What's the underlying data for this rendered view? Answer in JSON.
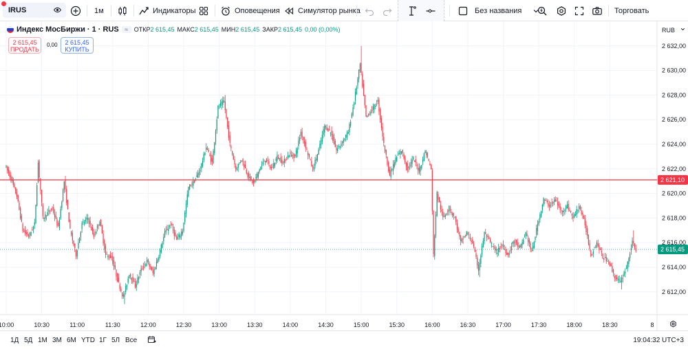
{
  "toolbar": {
    "symbol": "IRUS",
    "interval": "1м",
    "indicators_label": "Индикаторы",
    "alerts_label": "Оповещения",
    "replay_label": "Симулятор рынка",
    "layout_name": "Без названия",
    "trade_label": "Торговать"
  },
  "legend": {
    "title": "Индекс МосБиржи · 1 · RUS",
    "open_key": "ОТКР",
    "open_val": "2 615,45",
    "high_key": "МАКС",
    "high_val": "2 615,45",
    "low_key": "МИН",
    "low_val": "2 615,45",
    "close_key": "ЗАКР",
    "close_val": "2 615,45",
    "change": "0,00 (0,00%)"
  },
  "trade": {
    "sell_price": "2 615,45",
    "sell_label": "ПРОДАТЬ",
    "spread": "0,00",
    "buy_price": "2 615,45",
    "buy_label": "КУПИТЬ"
  },
  "scale_unit": "RUB",
  "bottom": {
    "timeframes": [
      "1Д",
      "5Д",
      "1М",
      "3М",
      "6М",
      "YTD",
      "1Г",
      "5Л",
      "Все"
    ],
    "clock": "19:04:32 UTC+3"
  },
  "colors": {
    "up": "#089981",
    "down": "#f23645",
    "grid": "#f0f3fa",
    "ref_line": "#f23645",
    "last_line": "#089981"
  },
  "chart_data": {
    "type": "candlestick",
    "y_ticks": [
      "2 632,00",
      "2 630,00",
      "2 628,00",
      "2 626,00",
      "2 624,00",
      "2 622,00",
      "2 620,00",
      "2 618,00",
      "2 616,00",
      "2 614,00",
      "2 612,00"
    ],
    "y_tick_values": [
      2632,
      2630,
      2628,
      2626,
      2624,
      2622,
      2620,
      2618,
      2616,
      2614,
      2612
    ],
    "x_ticks": [
      "10:00",
      "10:30",
      "11:00",
      "11:30",
      "12:00",
      "12:30",
      "13:00",
      "13:30",
      "14:00",
      "14:30",
      "15:00",
      "15:30",
      "16:00",
      "16:30",
      "17:00",
      "17:30",
      "18:00",
      "18:30",
      "8"
    ],
    "ylim": [
      2610.2,
      2634.0
    ],
    "horizontal_line": {
      "value": 2621.1,
      "label": "2 621,10"
    },
    "last_price": {
      "value": 2615.45,
      "label": "2 615,45"
    },
    "price_path": [
      [
        "10:00",
        2622.3
      ],
      [
        "10:05",
        2621.2
      ],
      [
        "10:10",
        2619.8
      ],
      [
        "10:15",
        2617.0
      ],
      [
        "10:20",
        2616.5
      ],
      [
        "10:25",
        2617.5
      ],
      [
        "10:28",
        2622.5
      ],
      [
        "10:32",
        2618.0
      ],
      [
        "10:40",
        2618.8
      ],
      [
        "10:45",
        2617.2
      ],
      [
        "10:50",
        2621.0
      ],
      [
        "10:55",
        2617.0
      ],
      [
        "11:00",
        2615.0
      ],
      [
        "11:05",
        2617.5
      ],
      [
        "11:10",
        2618.0
      ],
      [
        "11:15",
        2616.5
      ],
      [
        "11:20",
        2617.8
      ],
      [
        "11:25",
        2615.0
      ],
      [
        "11:30",
        2614.8
      ],
      [
        "11:35",
        2613.0
      ],
      [
        "11:40",
        2611.5
      ],
      [
        "11:45",
        2613.5
      ],
      [
        "11:50",
        2612.5
      ],
      [
        "11:55",
        2613.8
      ],
      [
        "12:00",
        2614.5
      ],
      [
        "12:05",
        2613.5
      ],
      [
        "12:10",
        2615.0
      ],
      [
        "12:15",
        2616.8
      ],
      [
        "12:20",
        2617.5
      ],
      [
        "12:25",
        2616.2
      ],
      [
        "12:30",
        2617.0
      ],
      [
        "12:35",
        2620.5
      ],
      [
        "12:40",
        2621.0
      ],
      [
        "12:45",
        2622.0
      ],
      [
        "12:50",
        2623.8
      ],
      [
        "12:55",
        2622.5
      ],
      [
        "13:00",
        2627.0
      ],
      [
        "13:05",
        2627.5
      ],
      [
        "13:10",
        2624.0
      ],
      [
        "13:15",
        2622.0
      ],
      [
        "13:20",
        2622.8
      ],
      [
        "13:25",
        2621.5
      ],
      [
        "13:30",
        2620.8
      ],
      [
        "13:35",
        2622.0
      ],
      [
        "13:40",
        2622.8
      ],
      [
        "13:45",
        2622.0
      ],
      [
        "13:50",
        2623.0
      ],
      [
        "13:55",
        2622.5
      ],
      [
        "14:00",
        2623.2
      ],
      [
        "14:05",
        2623.0
      ],
      [
        "14:10",
        2625.0
      ],
      [
        "14:15",
        2623.5
      ],
      [
        "14:20",
        2622.0
      ],
      [
        "14:25",
        2623.5
      ],
      [
        "14:30",
        2625.5
      ],
      [
        "14:35",
        2625.0
      ],
      [
        "14:40",
        2623.5
      ],
      [
        "14:45",
        2624.2
      ],
      [
        "14:50",
        2625.0
      ],
      [
        "14:55",
        2627.5
      ],
      [
        "15:00",
        2630.5
      ],
      [
        "15:05",
        2626.2
      ],
      [
        "15:10",
        2626.8
      ],
      [
        "15:15",
        2627.5
      ],
      [
        "15:20",
        2624.0
      ],
      [
        "15:25",
        2621.5
      ],
      [
        "15:30",
        2622.8
      ],
      [
        "15:35",
        2623.5
      ],
      [
        "15:40",
        2622.0
      ],
      [
        "15:45",
        2622.8
      ],
      [
        "15:50",
        2621.8
      ],
      [
        "15:55",
        2623.5
      ],
      [
        "16:00",
        2622.0
      ],
      [
        "16:02",
        2615.0
      ],
      [
        "16:05",
        2620.0
      ],
      [
        "16:10",
        2618.0
      ],
      [
        "16:15",
        2618.8
      ],
      [
        "16:20",
        2618.0
      ],
      [
        "16:25",
        2616.0
      ],
      [
        "16:30",
        2616.8
      ],
      [
        "16:35",
        2616.0
      ],
      [
        "16:40",
        2613.8
      ],
      [
        "16:45",
        2616.8
      ],
      [
        "16:50",
        2616.0
      ],
      [
        "16:55",
        2615.2
      ],
      [
        "17:00",
        2615.8
      ],
      [
        "17:05",
        2615.0
      ],
      [
        "17:10",
        2616.2
      ],
      [
        "17:15",
        2615.5
      ],
      [
        "17:20",
        2616.8
      ],
      [
        "17:25",
        2615.2
      ],
      [
        "17:30",
        2617.5
      ],
      [
        "17:35",
        2619.5
      ],
      [
        "17:40",
        2619.0
      ],
      [
        "17:45",
        2619.5
      ],
      [
        "17:50",
        2618.5
      ],
      [
        "17:55",
        2619.0
      ],
      [
        "18:00",
        2618.0
      ],
      [
        "18:05",
        2619.0
      ],
      [
        "18:10",
        2617.5
      ],
      [
        "18:15",
        2615.0
      ],
      [
        "18:20",
        2616.0
      ],
      [
        "18:25",
        2614.8
      ],
      [
        "18:30",
        2614.5
      ],
      [
        "18:35",
        2613.2
      ],
      [
        "18:40",
        2612.8
      ],
      [
        "18:45",
        2614.0
      ],
      [
        "18:50",
        2616.0
      ],
      [
        "18:53",
        2615.45
      ]
    ]
  }
}
